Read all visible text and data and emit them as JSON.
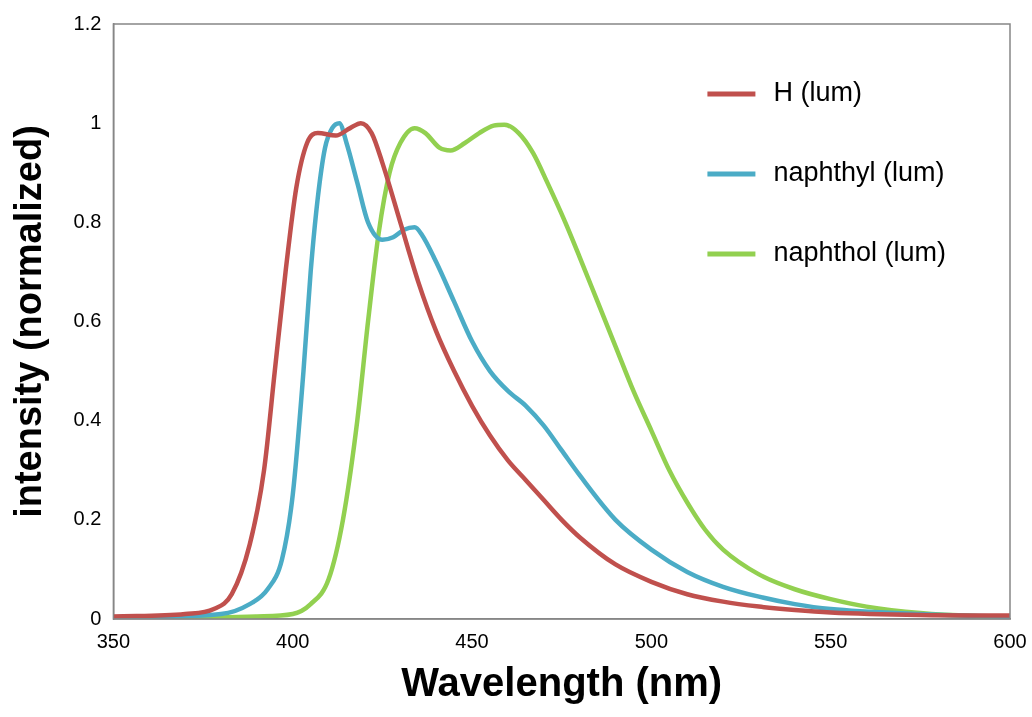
{
  "chart_data": {
    "type": "line",
    "xlabel": "Wavelength (nm)",
    "ylabel": "intensity (normalized)",
    "xlim": [
      350,
      600
    ],
    "xticks": [
      350,
      400,
      450,
      500,
      550,
      600
    ],
    "ylim": [
      0,
      1.2
    ],
    "yticks": [
      0,
      0.2,
      0.4,
      0.6,
      0.8,
      1,
      1.2
    ],
    "grid": false,
    "legend": "top right",
    "marker": "none",
    "line_style": "solid",
    "series": [
      {
        "name": "H (lum)",
        "color": "#c0504d",
        "x": [
          350,
          370,
          378,
          383,
          388,
          392,
          395,
          398,
          401,
          404,
          407,
          412,
          416,
          419,
          422,
          425,
          430,
          435,
          440,
          445,
          450,
          455,
          460,
          465,
          470,
          475,
          480,
          490,
          500,
          510,
          520,
          530,
          540,
          550,
          575,
          600
        ],
        "values": [
          0.005,
          0.01,
          0.02,
          0.05,
          0.15,
          0.3,
          0.5,
          0.7,
          0.87,
          0.96,
          0.98,
          0.975,
          0.99,
          1.0,
          0.98,
          0.92,
          0.8,
          0.68,
          0.58,
          0.5,
          0.43,
          0.37,
          0.32,
          0.28,
          0.24,
          0.2,
          0.165,
          0.11,
          0.075,
          0.05,
          0.035,
          0.025,
          0.018,
          0.013,
          0.008,
          0.007
        ]
      },
      {
        "name": "naphthyl (lum)",
        "color": "#4bacc6",
        "x": [
          350,
          380,
          388,
          393,
          397,
          400,
          403,
          405,
          407,
          409,
          411,
          413,
          415,
          418,
          421,
          425,
          428,
          431,
          434,
          436,
          440,
          445,
          450,
          455,
          460,
          465,
          470,
          475,
          480,
          490,
          500,
          510,
          520,
          530,
          540,
          550,
          575,
          600
        ],
        "values": [
          0.003,
          0.01,
          0.03,
          0.06,
          0.12,
          0.25,
          0.5,
          0.7,
          0.85,
          0.95,
          0.99,
          1.0,
          0.96,
          0.88,
          0.8,
          0.765,
          0.77,
          0.785,
          0.79,
          0.775,
          0.72,
          0.64,
          0.56,
          0.5,
          0.46,
          0.43,
          0.39,
          0.34,
          0.29,
          0.2,
          0.14,
          0.095,
          0.065,
          0.045,
          0.03,
          0.02,
          0.01,
          0.004
        ]
      },
      {
        "name": "naphthol (lum)",
        "color": "#92d050",
        "x": [
          350,
          390,
          400,
          405,
          410,
          414,
          418,
          421,
          424,
          427,
          430,
          434,
          437,
          441,
          444,
          448,
          452,
          456,
          459,
          463,
          467,
          471,
          476,
          480,
          485,
          490,
          495,
          500,
          505,
          510,
          515,
          520,
          530,
          540,
          550,
          560,
          575,
          590,
          600
        ],
        "values": [
          0,
          0.005,
          0.01,
          0.03,
          0.08,
          0.2,
          0.4,
          0.6,
          0.78,
          0.9,
          0.96,
          0.99,
          0.98,
          0.95,
          0.945,
          0.96,
          0.98,
          0.995,
          0.997,
          0.98,
          0.94,
          0.88,
          0.8,
          0.73,
          0.64,
          0.55,
          0.46,
          0.38,
          0.3,
          0.235,
          0.18,
          0.14,
          0.09,
          0.06,
          0.04,
          0.025,
          0.012,
          0.006,
          0.005
        ]
      }
    ]
  }
}
